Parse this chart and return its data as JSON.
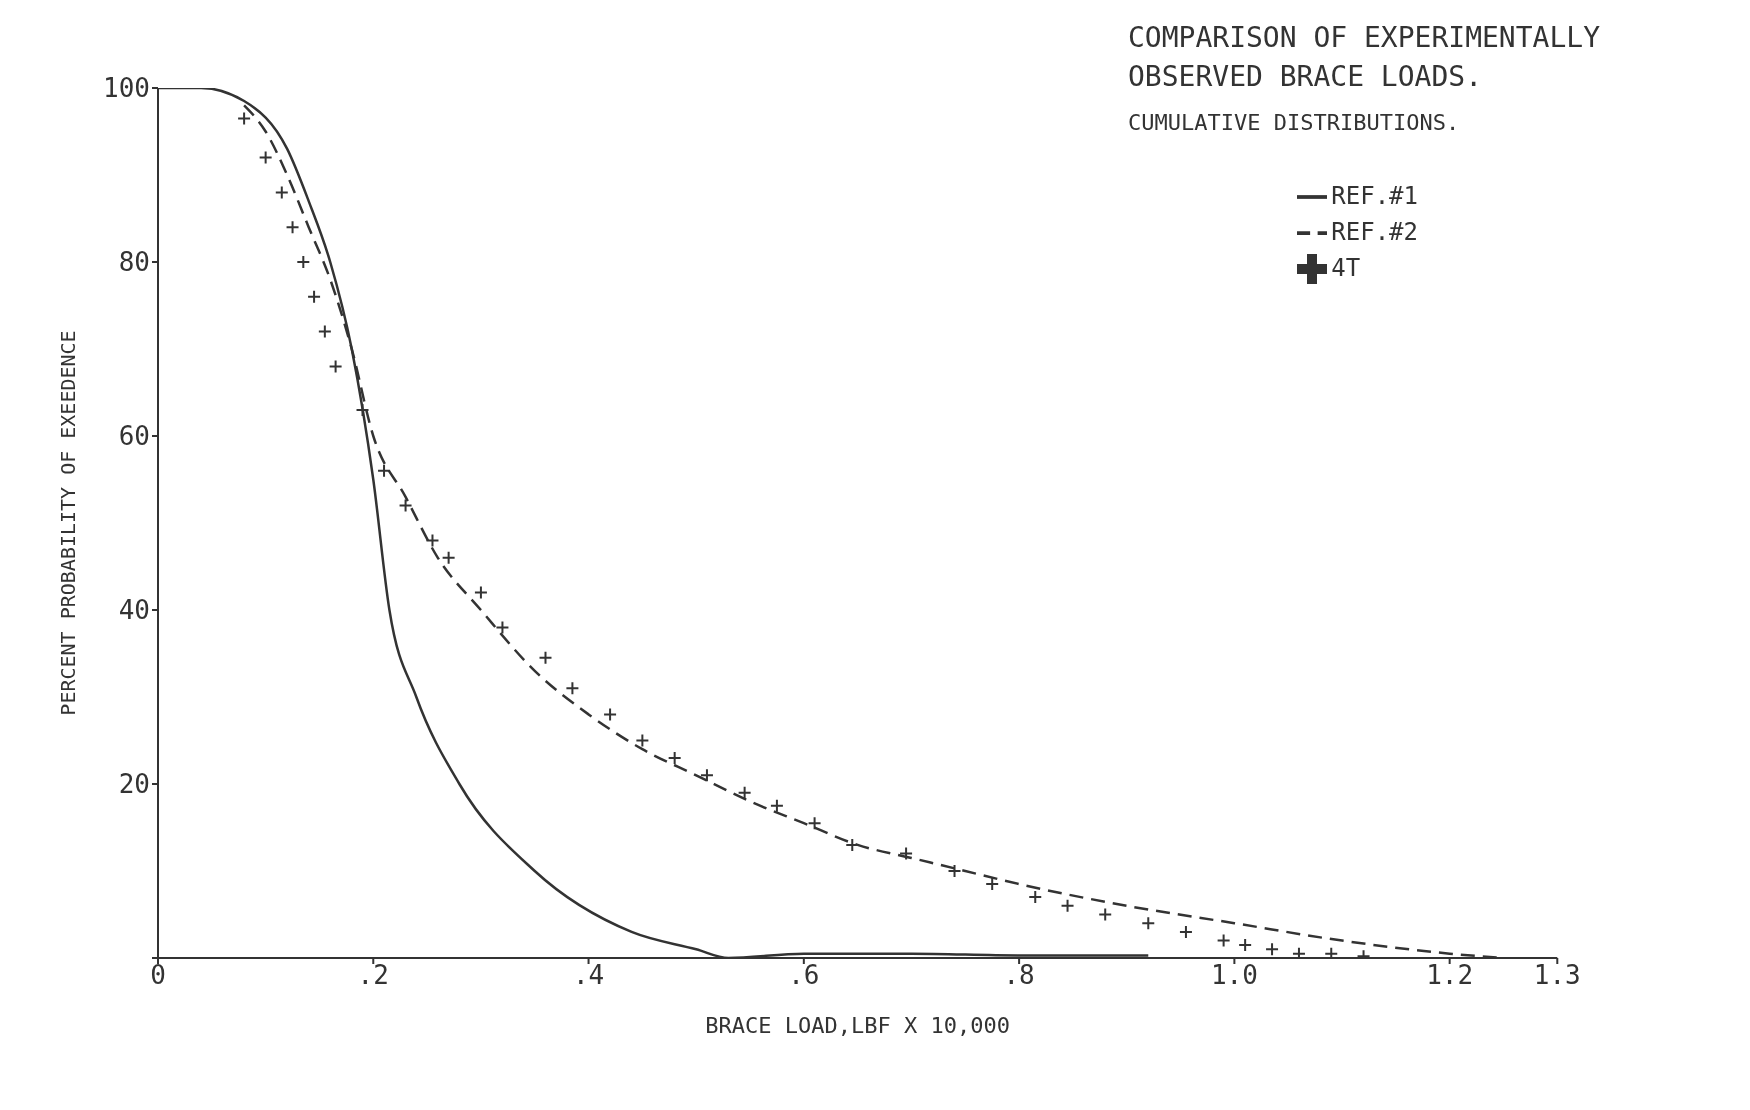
{
  "chart_data": {
    "type": "line",
    "title": "COMPARISON OF EXPERIMENTALLY\nOBSERVED BRACE LOADS.",
    "subtitle": "CUMULATIVE DISTRIBUTIONS.",
    "xlabel": "BRACE LOAD,LBF X 10,000",
    "ylabel": "PERCENT PROBABILITY OF EXEEDENCE",
    "xlim": [
      0,
      1.3
    ],
    "ylim": [
      0,
      100
    ],
    "xticks": [
      0,
      {
        "value": 0.2,
        "label": ".2"
      },
      {
        "value": 0.4,
        "label": ".4"
      },
      {
        "value": 0.6,
        "label": ".6"
      },
      {
        "value": 0.8,
        "label": ".8"
      },
      {
        "value": 1,
        "label": "1.0"
      },
      {
        "value": 1.2,
        "label": "1.2"
      },
      {
        "value": 1.3,
        "label": "1.3"
      }
    ],
    "yticks": [
      {
        "value": 0,
        "label": null
      },
      20,
      40,
      60,
      80,
      100
    ],
    "legend": "top right",
    "grid": false,
    "series": [
      {
        "name": "REF.#1",
        "line_style": "solid",
        "marker": "none",
        "color": "#333333",
        "x": [
          0,
          0.04,
          0.08,
          0.12,
          0.14,
          0.16,
          0.18,
          0.2,
          0.215,
          0.24,
          0.28,
          0.35,
          0.44,
          0.5,
          0.53,
          0.6,
          0.7,
          0.8,
          0.92
        ],
        "values": [
          100,
          100,
          98.5,
          93,
          87,
          80,
          70,
          55,
          40,
          30,
          20,
          10,
          3,
          1,
          0,
          0.5,
          0.5,
          0.3,
          0.3
        ]
      },
      {
        "name": "REF.#2",
        "line_style": "dashed",
        "marker": "none",
        "color": "#333333",
        "x": [
          0.08,
          0.1,
          0.12,
          0.14,
          0.16,
          0.18,
          0.2,
          0.23,
          0.26,
          0.3,
          0.35,
          0.4,
          0.45,
          0.5,
          0.55,
          0.6,
          0.65,
          0.7,
          0.75,
          0.8,
          0.9,
          1,
          1.1,
          1.2,
          1.25
        ],
        "values": [
          98,
          95,
          90,
          84,
          78,
          70,
          60,
          53,
          46,
          40,
          33,
          28,
          24,
          21,
          18,
          15.5,
          13,
          11.5,
          10,
          8.5,
          6,
          4,
          2,
          0.5,
          0
        ]
      },
      {
        "name": "4T",
        "type": "scatter",
        "marker": "cross",
        "color": "#333333",
        "x": [
          0.08,
          0.1,
          0.115,
          0.125,
          0.135,
          0.145,
          0.155,
          0.165,
          0.19,
          0.21,
          0.23,
          0.255,
          0.27,
          0.3,
          0.32,
          0.36,
          0.385,
          0.42,
          0.45,
          0.48,
          0.51,
          0.545,
          0.575,
          0.61,
          0.645,
          0.695,
          0.74,
          0.775,
          0.815,
          0.845,
          0.88,
          0.92,
          0.955,
          0.99,
          1.01,
          1.035,
          1.06,
          1.09,
          1.12
        ],
        "values": [
          96.5,
          92,
          88,
          84,
          80,
          76,
          72,
          68,
          63,
          56,
          52,
          48,
          46,
          42,
          38,
          34.5,
          31,
          28,
          25,
          23,
          21,
          19,
          17.5,
          15.5,
          13,
          12,
          10,
          8.5,
          7,
          6,
          5,
          4,
          3,
          2,
          1.5,
          1,
          0.5,
          0.5,
          0.2
        ]
      }
    ]
  }
}
